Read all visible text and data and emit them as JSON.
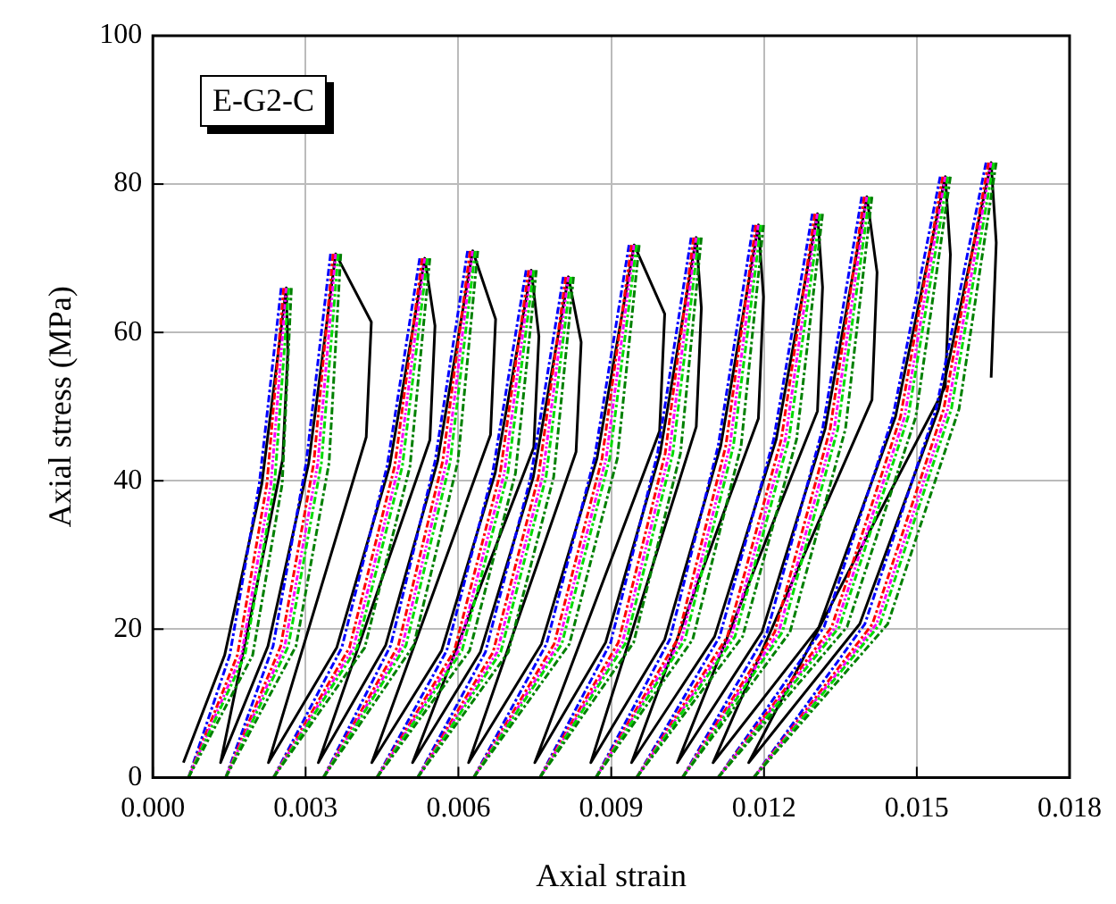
{
  "chart_data": {
    "type": "line",
    "xlabel": "Axial strain",
    "ylabel": "Axial stress (MPa)",
    "annotations": [
      "E-G2-C"
    ],
    "xlim": [
      0,
      0.018
    ],
    "ylim": [
      0,
      100
    ],
    "xticks": [
      {
        "value": 0,
        "label": "0.000"
      },
      {
        "value": 0.003,
        "label": "0.003"
      },
      {
        "value": 0.006,
        "label": "0.006"
      },
      {
        "value": 0.009,
        "label": "0.009"
      },
      {
        "value": 0.012,
        "label": "0.012"
      },
      {
        "value": 0.015,
        "label": "0.015"
      },
      {
        "value": 0.018,
        "label": "0.018"
      }
    ],
    "yticks": [
      0,
      20,
      40,
      60,
      80,
      100
    ],
    "grid": true,
    "legend": false,
    "marker": "none",
    "series": [
      {
        "color": "#000000",
        "line_style": "solid",
        "x": [
          0.0006,
          0.00141,
          0.00214,
          0.00262,
          0.00265,
          0.00255,
          0.00133,
          0.00226,
          0.00306,
          0.00359,
          0.00429,
          0.00419,
          0.00227,
          0.00361,
          0.00465,
          0.00534,
          0.00554,
          0.00544,
          0.00325,
          0.00457,
          0.00559,
          0.00628,
          0.00673,
          0.00663,
          0.0043,
          0.00567,
          0.00672,
          0.00743,
          0.00758,
          0.00748,
          0.0051,
          0.00643,
          0.00747,
          0.00816,
          0.00841,
          0.00831,
          0.0062,
          0.00763,
          0.00872,
          0.00945,
          0.01005,
          0.00995,
          0.0075,
          0.00889,
          0.00996,
          0.01067,
          0.01077,
          0.01067,
          0.0086,
          0.01005,
          0.01115,
          0.01189,
          0.01199,
          0.01189,
          0.0094,
          0.01103,
          0.01224,
          0.01305,
          0.01315,
          0.01305,
          0.0103,
          0.01196,
          0.0132,
          0.01402,
          0.01422,
          0.01412,
          0.011,
          0.01308,
          0.01458,
          0.01556,
          0.01566,
          0.01556,
          0.0117,
          0.01388,
          0.01543,
          0.01646,
          0.01656,
          0.01646
        ],
        "values": [
          2,
          16.5,
          39.6,
          66,
          57.4,
          42.9,
          2,
          17.7,
          42.4,
          70.6,
          61.4,
          45.9,
          2,
          17.5,
          42,
          70,
          60.9,
          45.5,
          2,
          17.8,
          42.6,
          71,
          61.8,
          46.2,
          2,
          17.1,
          41,
          68.4,
          59.5,
          44.5,
          2,
          16.9,
          40.5,
          67.5,
          58.7,
          43.9,
          2,
          18,
          43,
          71.8,
          62.5,
          46.7,
          2,
          18.2,
          43.7,
          72.8,
          63.3,
          47.3,
          2,
          18.6,
          44.7,
          74.5,
          64.8,
          48.4,
          2,
          19,
          45.6,
          76,
          66.1,
          49.4,
          2,
          19.6,
          47,
          78.3,
          68.1,
          50.9,
          2,
          20.3,
          48.6,
          81,
          70.5,
          52.7,
          2,
          20.7,
          49.7,
          82.9,
          72.1,
          53.9
        ]
      },
      {
        "color": "#0000ff",
        "line_style": "dashed",
        "x": [
          0.0007,
          0.00151,
          0.00209,
          0.00252
        ],
        "values": [
          0,
          16.5,
          39.6,
          66
        ]
      },
      {
        "color": "#0000ff",
        "line_style": "dashed",
        "x": [
          0.00143,
          0.00236,
          0.00301,
          0.00349
        ],
        "values": [
          0,
          17.7,
          42.4,
          70.6
        ]
      },
      {
        "color": "#0000ff",
        "line_style": "dashed",
        "x": [
          0.00237,
          0.00371,
          0.0046,
          0.00524
        ],
        "values": [
          0,
          17.5,
          42,
          70
        ]
      },
      {
        "color": "#0000ff",
        "line_style": "dashed",
        "x": [
          0.00335,
          0.00467,
          0.00554,
          0.00618
        ],
        "values": [
          0,
          17.8,
          42.6,
          71
        ]
      },
      {
        "color": "#0000ff",
        "line_style": "dashed",
        "x": [
          0.0044,
          0.00577,
          0.00667,
          0.00733
        ],
        "values": [
          0,
          17.1,
          41,
          68.4
        ]
      },
      {
        "color": "#0000ff",
        "line_style": "dashed",
        "x": [
          0.0052,
          0.00653,
          0.00742,
          0.00806
        ],
        "values": [
          0,
          16.9,
          40.5,
          67.5
        ]
      },
      {
        "color": "#0000ff",
        "line_style": "dashed",
        "x": [
          0.0063,
          0.00773,
          0.00867,
          0.00935
        ],
        "values": [
          0,
          18,
          43,
          71.8
        ]
      },
      {
        "color": "#0000ff",
        "line_style": "dashed",
        "x": [
          0.0076,
          0.00899,
          0.00991,
          0.01057
        ],
        "values": [
          0,
          18.2,
          43.7,
          72.8
        ]
      },
      {
        "color": "#0000ff",
        "line_style": "dashed",
        "x": [
          0.0087,
          0.01015,
          0.0111,
          0.01179
        ],
        "values": [
          0,
          18.6,
          44.7,
          74.5
        ]
      },
      {
        "color": "#0000ff",
        "line_style": "dashed",
        "x": [
          0.0095,
          0.01113,
          0.01219,
          0.01295
        ],
        "values": [
          0,
          19,
          45.6,
          76
        ]
      },
      {
        "color": "#0000ff",
        "line_style": "dashed",
        "x": [
          0.0104,
          0.01206,
          0.01315,
          0.01392
        ],
        "values": [
          0,
          19.6,
          47,
          78.3
        ]
      },
      {
        "color": "#0000ff",
        "line_style": "dashed",
        "x": [
          0.0111,
          0.01318,
          0.01453,
          0.01546
        ],
        "values": [
          0,
          20.3,
          48.6,
          81
        ]
      },
      {
        "color": "#0000ff",
        "line_style": "dashed",
        "x": [
          0.0118,
          0.01398,
          0.01538,
          0.01636
        ],
        "values": [
          0,
          20.7,
          49.7,
          82.9
        ]
      },
      {
        "color": "#ff0000",
        "line_style": "dashed",
        "x": [
          0.0007,
          0.00166,
          0.00224,
          0.00257
        ],
        "values": [
          0,
          16.5,
          39.6,
          66
        ]
      },
      {
        "color": "#ff0000",
        "line_style": "dashed",
        "x": [
          0.00143,
          0.00251,
          0.00316,
          0.00354
        ],
        "values": [
          0,
          17.7,
          42.4,
          70.6
        ]
      },
      {
        "color": "#ff0000",
        "line_style": "dashed",
        "x": [
          0.00237,
          0.00386,
          0.00475,
          0.00529
        ],
        "values": [
          0,
          17.5,
          42,
          70
        ]
      },
      {
        "color": "#ff0000",
        "line_style": "dashed",
        "x": [
          0.00335,
          0.00482,
          0.00569,
          0.00623
        ],
        "values": [
          0,
          17.8,
          42.6,
          71
        ]
      },
      {
        "color": "#ff0000",
        "line_style": "dashed",
        "x": [
          0.0044,
          0.00592,
          0.00682,
          0.00738
        ],
        "values": [
          0,
          17.1,
          41,
          68.4
        ]
      },
      {
        "color": "#ff0000",
        "line_style": "dashed",
        "x": [
          0.0052,
          0.00668,
          0.00757,
          0.00811
        ],
        "values": [
          0,
          16.9,
          40.5,
          67.5
        ]
      },
      {
        "color": "#ff0000",
        "line_style": "dashed",
        "x": [
          0.0063,
          0.00788,
          0.00882,
          0.0094
        ],
        "values": [
          0,
          18,
          43,
          71.8
        ]
      },
      {
        "color": "#ff0000",
        "line_style": "dashed",
        "x": [
          0.0076,
          0.00914,
          0.01006,
          0.01062
        ],
        "values": [
          0,
          18.2,
          43.7,
          72.8
        ]
      },
      {
        "color": "#ff0000",
        "line_style": "dashed",
        "x": [
          0.0087,
          0.0103,
          0.01125,
          0.01184
        ],
        "values": [
          0,
          18.6,
          44.7,
          74.5
        ]
      },
      {
        "color": "#ff0000",
        "line_style": "dashed",
        "x": [
          0.0095,
          0.01128,
          0.01234,
          0.013
        ],
        "values": [
          0,
          19,
          45.6,
          76
        ]
      },
      {
        "color": "#ff0000",
        "line_style": "dashed",
        "x": [
          0.0104,
          0.01221,
          0.0133,
          0.01397
        ],
        "values": [
          0,
          19.6,
          47,
          78.3
        ]
      },
      {
        "color": "#ff0000",
        "line_style": "dashed",
        "x": [
          0.0111,
          0.01333,
          0.01468,
          0.01551
        ],
        "values": [
          0,
          20.3,
          48.6,
          81
        ]
      },
      {
        "color": "#ff0000",
        "line_style": "dashed",
        "x": [
          0.0118,
          0.01413,
          0.01553,
          0.01641
        ],
        "values": [
          0,
          20.7,
          49.7,
          82.9
        ]
      },
      {
        "color": "#ff00ff",
        "line_style": "dotted",
        "x": [
          0.0007,
          0.00174,
          0.00232,
          0.00262
        ],
        "values": [
          0,
          16.5,
          39.6,
          66
        ]
      },
      {
        "color": "#ff00ff",
        "line_style": "dotted",
        "x": [
          0.00143,
          0.00259,
          0.00324,
          0.00359
        ],
        "values": [
          0,
          17.7,
          42.4,
          70.6
        ]
      },
      {
        "color": "#ff00ff",
        "line_style": "dotted",
        "x": [
          0.00237,
          0.00394,
          0.00483,
          0.00534
        ],
        "values": [
          0,
          17.5,
          42,
          70
        ]
      },
      {
        "color": "#ff00ff",
        "line_style": "dotted",
        "x": [
          0.00335,
          0.0049,
          0.00577,
          0.00628
        ],
        "values": [
          0,
          17.8,
          42.6,
          71
        ]
      },
      {
        "color": "#ff00ff",
        "line_style": "dotted",
        "x": [
          0.0044,
          0.006,
          0.0069,
          0.00743
        ],
        "values": [
          0,
          17.1,
          41,
          68.4
        ]
      },
      {
        "color": "#ff00ff",
        "line_style": "dotted",
        "x": [
          0.0052,
          0.00676,
          0.00765,
          0.00816
        ],
        "values": [
          0,
          16.9,
          40.5,
          67.5
        ]
      },
      {
        "color": "#ff00ff",
        "line_style": "dotted",
        "x": [
          0.0063,
          0.00796,
          0.0089,
          0.00945
        ],
        "values": [
          0,
          18,
          43,
          71.8
        ]
      },
      {
        "color": "#ff00ff",
        "line_style": "dotted",
        "x": [
          0.0076,
          0.00922,
          0.01014,
          0.01067
        ],
        "values": [
          0,
          18.2,
          43.7,
          72.8
        ]
      },
      {
        "color": "#ff00ff",
        "line_style": "dotted",
        "x": [
          0.0087,
          0.01038,
          0.01133,
          0.01189
        ],
        "values": [
          0,
          18.6,
          44.7,
          74.5
        ]
      },
      {
        "color": "#ff00ff",
        "line_style": "dotted",
        "x": [
          0.0095,
          0.01136,
          0.01242,
          0.01305
        ],
        "values": [
          0,
          19,
          45.6,
          76
        ]
      },
      {
        "color": "#ff00ff",
        "line_style": "dotted",
        "x": [
          0.0104,
          0.01229,
          0.01338,
          0.01402
        ],
        "values": [
          0,
          19.6,
          47,
          78.3
        ]
      },
      {
        "color": "#ff00ff",
        "line_style": "dotted",
        "x": [
          0.0111,
          0.01341,
          0.01476,
          0.01556
        ],
        "values": [
          0,
          20.3,
          48.6,
          81
        ]
      },
      {
        "color": "#ff00ff",
        "line_style": "dotted",
        "x": [
          0.0118,
          0.01421,
          0.01561,
          0.01646
        ],
        "values": [
          0,
          20.7,
          49.7,
          82.9
        ]
      },
      {
        "color": "#00dd00",
        "line_style": "dashed",
        "x": [
          0.0007,
          0.00181,
          0.00239,
          0.00267
        ],
        "values": [
          0,
          16.5,
          39.6,
          66
        ]
      },
      {
        "color": "#00dd00",
        "line_style": "dashed",
        "x": [
          0.00143,
          0.00266,
          0.00331,
          0.00364
        ],
        "values": [
          0,
          17.7,
          42.4,
          70.6
        ]
      },
      {
        "color": "#00dd00",
        "line_style": "dashed",
        "x": [
          0.00237,
          0.00401,
          0.0049,
          0.00539
        ],
        "values": [
          0,
          17.5,
          42,
          70
        ]
      },
      {
        "color": "#00dd00",
        "line_style": "dashed",
        "x": [
          0.00335,
          0.00497,
          0.00584,
          0.00633
        ],
        "values": [
          0,
          17.8,
          42.6,
          71
        ]
      },
      {
        "color": "#00dd00",
        "line_style": "dashed",
        "x": [
          0.0044,
          0.00607,
          0.00697,
          0.00748
        ],
        "values": [
          0,
          17.1,
          41,
          68.4
        ]
      },
      {
        "color": "#00dd00",
        "line_style": "dashed",
        "x": [
          0.0052,
          0.00683,
          0.00772,
          0.00821
        ],
        "values": [
          0,
          16.9,
          40.5,
          67.5
        ]
      },
      {
        "color": "#00dd00",
        "line_style": "dashed",
        "x": [
          0.0063,
          0.00803,
          0.00897,
          0.0095
        ],
        "values": [
          0,
          18,
          43,
          71.8
        ]
      },
      {
        "color": "#00dd00",
        "line_style": "dashed",
        "x": [
          0.0076,
          0.00929,
          0.01021,
          0.01072
        ],
        "values": [
          0,
          18.2,
          43.7,
          72.8
        ]
      },
      {
        "color": "#00dd00",
        "line_style": "dashed",
        "x": [
          0.0087,
          0.01045,
          0.0114,
          0.01194
        ],
        "values": [
          0,
          18.6,
          44.7,
          74.5
        ]
      },
      {
        "color": "#00dd00",
        "line_style": "dashed",
        "x": [
          0.0095,
          0.01143,
          0.01249,
          0.0131
        ],
        "values": [
          0,
          19,
          45.6,
          76
        ]
      },
      {
        "color": "#00dd00",
        "line_style": "dashed",
        "x": [
          0.0104,
          0.01236,
          0.01345,
          0.01407
        ],
        "values": [
          0,
          19.6,
          47,
          78.3
        ]
      },
      {
        "color": "#00dd00",
        "line_style": "dashed",
        "x": [
          0.0111,
          0.01348,
          0.01483,
          0.01561
        ],
        "values": [
          0,
          20.3,
          48.6,
          81
        ]
      },
      {
        "color": "#00dd00",
        "line_style": "dashed",
        "x": [
          0.0118,
          0.01428,
          0.01568,
          0.01651
        ],
        "values": [
          0,
          20.7,
          49.7,
          82.9
        ]
      },
      {
        "color": "#008000",
        "line_style": "dashed",
        "x": [
          0.0007,
          0.00196,
          0.00254,
          0.00272
        ],
        "values": [
          0,
          16.5,
          39.6,
          66
        ]
      },
      {
        "color": "#008000",
        "line_style": "dashed",
        "x": [
          0.00143,
          0.00281,
          0.00346,
          0.00369
        ],
        "values": [
          0,
          17.7,
          42.4,
          70.6
        ]
      },
      {
        "color": "#008000",
        "line_style": "dashed",
        "x": [
          0.00237,
          0.00416,
          0.00505,
          0.00544
        ],
        "values": [
          0,
          17.5,
          42,
          70
        ]
      },
      {
        "color": "#008000",
        "line_style": "dashed",
        "x": [
          0.00335,
          0.00512,
          0.00599,
          0.00638
        ],
        "values": [
          0,
          17.8,
          42.6,
          71
        ]
      },
      {
        "color": "#008000",
        "line_style": "dashed",
        "x": [
          0.0044,
          0.00622,
          0.00712,
          0.00753
        ],
        "values": [
          0,
          17.1,
          41,
          68.4
        ]
      },
      {
        "color": "#008000",
        "line_style": "dashed",
        "x": [
          0.0052,
          0.00698,
          0.00787,
          0.00826
        ],
        "values": [
          0,
          16.9,
          40.5,
          67.5
        ]
      },
      {
        "color": "#008000",
        "line_style": "dashed",
        "x": [
          0.0063,
          0.00818,
          0.00912,
          0.00955
        ],
        "values": [
          0,
          18,
          43,
          71.8
        ]
      },
      {
        "color": "#008000",
        "line_style": "dashed",
        "x": [
          0.0076,
          0.00944,
          0.01036,
          0.01077
        ],
        "values": [
          0,
          18.2,
          43.7,
          72.8
        ]
      },
      {
        "color": "#008000",
        "line_style": "dashed",
        "x": [
          0.0087,
          0.0106,
          0.01155,
          0.01199
        ],
        "values": [
          0,
          18.6,
          44.7,
          74.5
        ]
      },
      {
        "color": "#008000",
        "line_style": "dashed",
        "x": [
          0.0095,
          0.01158,
          0.01264,
          0.01315
        ],
        "values": [
          0,
          19,
          45.6,
          76
        ]
      },
      {
        "color": "#008000",
        "line_style": "dashed",
        "x": [
          0.0104,
          0.01251,
          0.0136,
          0.01412
        ],
        "values": [
          0,
          19.6,
          47,
          78.3
        ]
      },
      {
        "color": "#008000",
        "line_style": "dashed",
        "x": [
          0.0111,
          0.01363,
          0.01498,
          0.01566
        ],
        "values": [
          0,
          20.3,
          48.6,
          81
        ]
      },
      {
        "color": "#008000",
        "line_style": "dashed",
        "x": [
          0.0118,
          0.01443,
          0.01583,
          0.01656
        ],
        "values": [
          0,
          20.7,
          49.7,
          82.9
        ]
      }
    ]
  }
}
